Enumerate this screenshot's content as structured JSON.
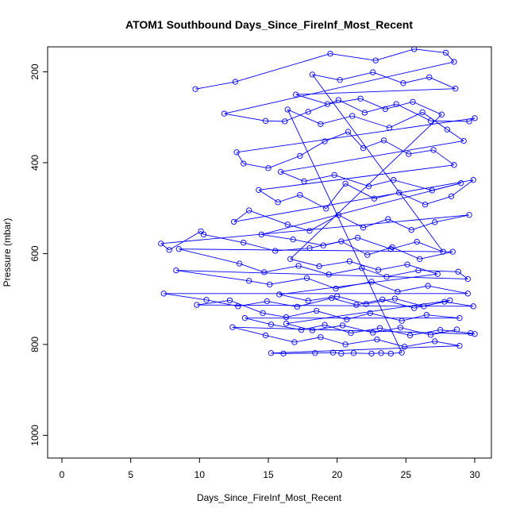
{
  "chart_data": {
    "type": "scatter",
    "title": "ATOM1 Southbound Days_Since_FireInf_Most_Recent",
    "xlabel": "Days_Since_FireInf_Most_Recent",
    "ylabel": "Pressure (mbar)",
    "xlim": [
      0,
      30
    ],
    "ylim": [
      1050,
      145
    ],
    "y_reversed": true,
    "x_ticks": [
      0,
      5,
      10,
      15,
      20,
      25,
      30
    ],
    "y_ticks": [
      200,
      400,
      600,
      800,
      1000
    ],
    "x_tick_labels": [
      "0",
      "5",
      "10",
      "15",
      "20",
      "25",
      "30"
    ],
    "y_tick_labels": [
      "200",
      "400",
      "600",
      "800",
      "1000"
    ],
    "series_color": "#0000ff",
    "marker": "open-circle",
    "connected": true,
    "grid": false,
    "series": [
      {
        "points": [
          [
            9.7,
            238
          ],
          [
            12.6,
            222
          ],
          [
            19.5,
            160
          ],
          [
            22.8,
            175
          ],
          [
            25.6,
            150
          ],
          [
            27.9,
            158
          ],
          [
            28.5,
            178
          ],
          [
            11.8,
            292
          ],
          [
            14.8,
            308
          ],
          [
            16.2,
            309
          ],
          [
            17.9,
            288
          ],
          [
            20.1,
            262
          ],
          [
            22.0,
            290
          ],
          [
            24.3,
            271
          ],
          [
            26.8,
            308
          ],
          [
            29.6,
            309
          ],
          [
            30.0,
            302
          ],
          [
            12.7,
            377
          ],
          [
            13.2,
            402
          ],
          [
            15.0,
            412
          ],
          [
            17.3,
            385
          ],
          [
            19.1,
            353
          ],
          [
            20.8,
            332
          ],
          [
            21.9,
            368
          ],
          [
            23.4,
            351
          ],
          [
            25.2,
            381
          ],
          [
            27.0,
            372
          ],
          [
            28.5,
            405
          ],
          [
            14.3,
            460
          ],
          [
            15.7,
            487
          ],
          [
            17.3,
            471
          ],
          [
            19.2,
            501
          ],
          [
            20.6,
            446
          ],
          [
            22.7,
            479
          ],
          [
            24.5,
            466
          ],
          [
            26.4,
            492
          ],
          [
            28.3,
            474
          ],
          [
            29.9,
            438
          ],
          [
            12.5,
            530
          ],
          [
            13.6,
            505
          ],
          [
            16.4,
            536
          ],
          [
            18.0,
            550
          ],
          [
            20.1,
            515
          ],
          [
            21.9,
            543
          ],
          [
            23.7,
            524
          ],
          [
            25.4,
            548
          ],
          [
            27.1,
            531
          ],
          [
            29.6,
            515
          ],
          [
            7.2,
            578
          ],
          [
            7.8,
            592
          ],
          [
            10.1,
            551
          ],
          [
            10.3,
            558
          ],
          [
            13.2,
            576
          ],
          [
            15.5,
            594
          ],
          [
            18.0,
            588
          ],
          [
            20.3,
            573
          ],
          [
            22.2,
            603
          ],
          [
            24.0,
            586
          ],
          [
            26.0,
            612
          ],
          [
            28.4,
            596
          ],
          [
            8.5,
            590
          ],
          [
            12.9,
            622
          ],
          [
            14.7,
            641
          ],
          [
            17.2,
            627
          ],
          [
            19.4,
            646
          ],
          [
            21.8,
            632
          ],
          [
            23.6,
            651
          ],
          [
            25.9,
            637
          ],
          [
            28.8,
            640
          ],
          [
            29.5,
            656
          ],
          [
            8.3,
            637
          ],
          [
            13.6,
            660
          ],
          [
            15.1,
            668
          ],
          [
            17.8,
            654
          ],
          [
            19.9,
            677
          ],
          [
            22.5,
            662
          ],
          [
            24.4,
            684
          ],
          [
            26.6,
            671
          ],
          [
            29.5,
            688
          ],
          [
            7.4,
            688
          ],
          [
            10.5,
            702
          ],
          [
            12.8,
            716
          ],
          [
            14.9,
            705
          ],
          [
            17.1,
            717
          ],
          [
            19.6,
            698
          ],
          [
            21.4,
            713
          ],
          [
            23.3,
            701
          ],
          [
            25.6,
            720
          ],
          [
            27.8,
            706
          ],
          [
            29.9,
            716
          ],
          [
            9.8,
            713
          ],
          [
            12.2,
            703
          ],
          [
            14.6,
            731
          ],
          [
            16.3,
            740
          ],
          [
            18.5,
            726
          ],
          [
            20.7,
            745
          ],
          [
            22.4,
            731
          ],
          [
            24.7,
            748
          ],
          [
            26.5,
            735
          ],
          [
            28.9,
            742
          ],
          [
            13.3,
            742
          ],
          [
            15.2,
            756
          ],
          [
            17.4,
            768
          ],
          [
            19.1,
            757
          ],
          [
            21.0,
            775
          ],
          [
            23.1,
            764
          ],
          [
            25.3,
            780
          ],
          [
            27.5,
            768
          ],
          [
            29.7,
            775
          ],
          [
            30.0,
            777
          ],
          [
            12.4,
            762
          ],
          [
            14.8,
            780
          ],
          [
            16.9,
            795
          ],
          [
            18.8,
            784
          ],
          [
            20.6,
            800
          ],
          [
            22.9,
            789
          ],
          [
            24.9,
            805
          ],
          [
            27.1,
            793
          ],
          [
            28.9,
            803
          ],
          [
            15.2,
            819
          ],
          [
            16.1,
            820
          ],
          [
            18.4,
            819
          ],
          [
            19.7,
            818
          ],
          [
            20.3,
            820
          ],
          [
            21.2,
            819
          ],
          [
            22.5,
            820
          ],
          [
            23.2,
            819
          ],
          [
            23.9,
            820
          ],
          [
            24.7,
            818
          ],
          [
            16.4,
            283
          ],
          [
            18.8,
            315
          ],
          [
            21.1,
            297
          ],
          [
            23.8,
            323
          ],
          [
            26.2,
            289
          ],
          [
            28.0,
            327
          ],
          [
            29.2,
            352
          ],
          [
            15.9,
            420
          ],
          [
            17.6,
            441
          ],
          [
            19.8,
            427
          ],
          [
            22.3,
            452
          ],
          [
            24.1,
            438
          ],
          [
            26.9,
            461
          ],
          [
            29.0,
            445
          ],
          [
            14.5,
            558
          ],
          [
            16.8,
            569
          ],
          [
            19.0,
            582
          ],
          [
            21.5,
            565
          ],
          [
            23.9,
            590
          ],
          [
            25.8,
            574
          ],
          [
            27.7,
            596
          ],
          [
            18.2,
            206
          ],
          [
            20.2,
            218
          ],
          [
            22.6,
            201
          ],
          [
            24.8,
            225
          ],
          [
            26.7,
            212
          ],
          [
            28.6,
            237
          ],
          [
            17.0,
            250
          ],
          [
            19.3,
            271
          ],
          [
            21.7,
            259
          ],
          [
            23.5,
            282
          ],
          [
            25.5,
            266
          ],
          [
            27.6,
            294
          ],
          [
            16.6,
            612
          ],
          [
            18.7,
            628
          ],
          [
            20.9,
            617
          ],
          [
            23.0,
            636
          ],
          [
            25.1,
            624
          ],
          [
            27.3,
            645
          ],
          [
            15.8,
            690
          ],
          [
            17.9,
            704
          ],
          [
            20.0,
            694
          ],
          [
            22.1,
            711
          ],
          [
            24.2,
            699
          ],
          [
            26.3,
            716
          ],
          [
            28.2,
            703
          ],
          [
            16.3,
            754
          ],
          [
            18.2,
            769
          ],
          [
            20.4,
            758
          ],
          [
            22.6,
            774
          ],
          [
            24.6,
            763
          ],
          [
            26.8,
            779
          ],
          [
            28.7,
            767
          ]
        ]
      }
    ]
  }
}
